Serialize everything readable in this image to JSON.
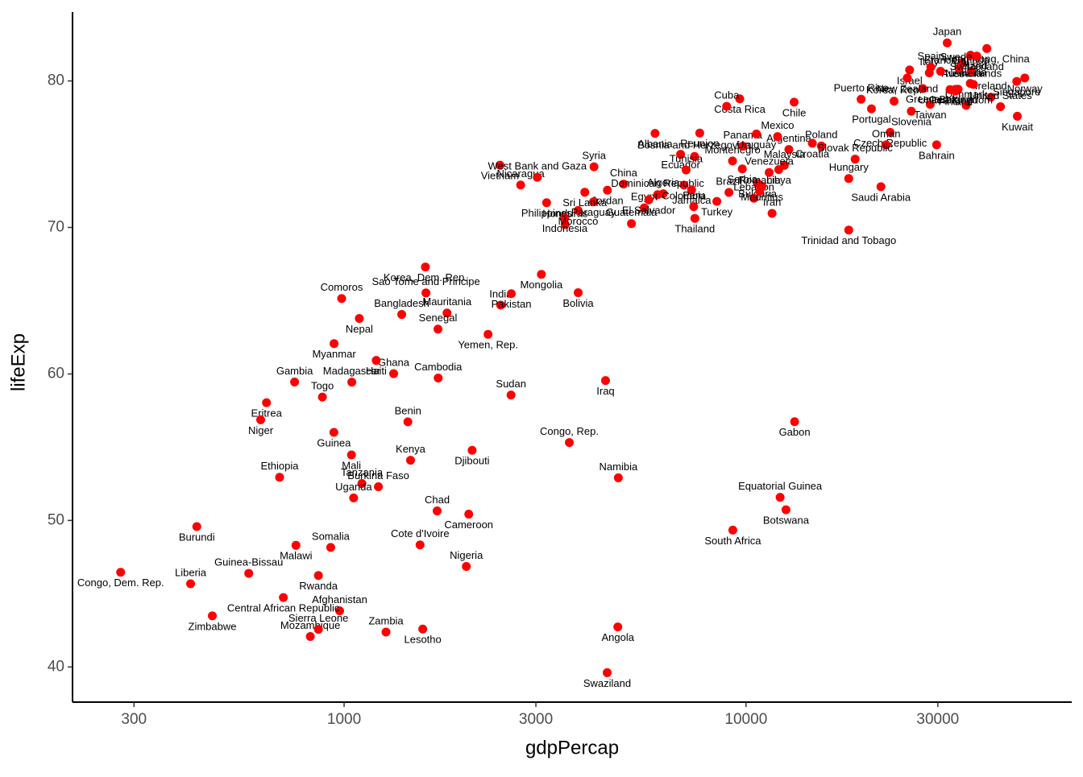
{
  "chart_data": {
    "type": "scatter",
    "x_label": "gdpPercap",
    "y_label": "lifeExp",
    "log_x": true,
    "grid": false,
    "color": "#ff0000",
    "xlim": [
      211,
      64600
    ],
    "ylim": [
      37.6,
      84.7
    ],
    "xticks": [
      300,
      1000,
      3000,
      10000,
      30000
    ],
    "yticks": [
      40,
      50,
      60,
      70,
      80
    ],
    "labels": [
      "Afghanistan",
      "Albania",
      "Algeria",
      "Angola",
      "Argentina",
      "Australia",
      "Austria",
      "Bahrain",
      "Bangladesh",
      "Belgium",
      "Benin",
      "Bolivia",
      "Bosnia and Herzegovina",
      "Botswana",
      "Brazil",
      "Bulgaria",
      "Burkina Faso",
      "Burundi",
      "Cambodia",
      "Cameroon",
      "Canada",
      "Central African Republic",
      "Chad",
      "Chile",
      "China",
      "Colombia",
      "Comoros",
      "Congo, Dem. Rep.",
      "Congo, Rep.",
      "Costa Rica",
      "Cote d'Ivoire",
      "Croatia",
      "Cuba",
      "Czech Republic",
      "Denmark",
      "Djibouti",
      "Dominican Republic",
      "Ecuador",
      "Egypt",
      "El Salvador",
      "Equatorial Guinea",
      "Eritrea",
      "Ethiopia",
      "Finland",
      "France",
      "Gabon",
      "Gambia",
      "Germany",
      "Ghana",
      "Greece",
      "Guatemala",
      "Guinea",
      "Guinea-Bissau",
      "Haiti",
      "Honduras",
      "Hong Kong, China",
      "Hungary",
      "Iceland",
      "India",
      "Indonesia",
      "Iran",
      "Iraq",
      "Ireland",
      "Israel",
      "Italy",
      "Jamaica",
      "Japan",
      "Jordan",
      "Kenya",
      "Korea, Dem. Rep.",
      "Korea, Rep.",
      "Kuwait",
      "Lebanon",
      "Lesotho",
      "Liberia",
      "Libya",
      "Madagascar",
      "Malawi",
      "Malaysia",
      "Mali",
      "Mauritania",
      "Mauritius",
      "Mexico",
      "Mongolia",
      "Montenegro",
      "Morocco",
      "Mozambique",
      "Myanmar",
      "Namibia",
      "Nepal",
      "Netherlands",
      "New Zealand",
      "Nicaragua",
      "Niger",
      "Nigeria",
      "Norway",
      "Oman",
      "Pakistan",
      "Panama",
      "Paraguay",
      "Peru",
      "Philippines",
      "Poland",
      "Portugal",
      "Puerto Rico",
      "Reunion",
      "Romania",
      "Rwanda",
      "Sao Tome and Principe",
      "Saudi Arabia",
      "Senegal",
      "Serbia",
      "Sierra Leone",
      "Singapore",
      "Slovak Republic",
      "Slovenia",
      "Somalia",
      "South Africa",
      "Spain",
      "Sri Lanka",
      "Sudan",
      "Swaziland",
      "Sweden",
      "Switzerland",
      "Syria",
      "Taiwan",
      "Tanzania",
      "Thailand",
      "Togo",
      "Trinidad and Tobago",
      "Tunisia",
      "Turkey",
      "Uganda",
      "United Kingdom",
      "United States",
      "Uruguay",
      "Venezuela",
      "Vietnam",
      "West Bank and Gaza",
      "Yemen, Rep.",
      "Zambia",
      "Zimbabwe"
    ],
    "x": [
      974.6,
      5937,
      6223,
      4797,
      12779,
      34435,
      36126,
      29796,
      1391,
      33693,
      1441,
      3822,
      7446,
      12570,
      9066,
      10681,
      1217,
      430,
      1714,
      2042,
      36319,
      706,
      1704,
      13172,
      4959,
      7007,
      986,
      278,
      3633,
      9645,
      1545,
      14619,
      8948,
      22833,
      35278,
      2082,
      6025,
      6873,
      5581,
      5728,
      12154,
      641,
      691,
      33207,
      30470,
      13206,
      753,
      32170,
      1328,
      27538,
      5186,
      943,
      579,
      1202,
      3548,
      39725,
      18009,
      36181,
      2452,
      3541,
      11606,
      4471,
      40676,
      25523,
      28570,
      7321,
      31656,
      4519,
      1463,
      1593,
      23348,
      47307,
      10461,
      1569,
      415,
      12057,
      1045,
      759,
      12452,
      1043,
      1803,
      10957,
      11978,
      3096,
      9254,
      3820,
      824,
      944,
      4811,
      1091,
      36798,
      25185,
      2749,
      620,
      2014,
      49357,
      22316,
      2606,
      9809,
      4173,
      7409,
      3190,
      15390,
      20510,
      19329,
      7670,
      10808,
      863,
      1598,
      21655,
      1712,
      9787,
      863,
      47143,
      18678,
      25768,
      926,
      9270,
      28821,
      3970,
      2602,
      4513,
      33860,
      37506,
      4185,
      28718,
      1107,
      7458,
      883,
      18009,
      7093,
      8458,
      1056,
      33203,
      42952,
      10611,
      11416,
      2442,
      3025,
      2281,
      1271,
      470
    ],
    "y": [
      43.83,
      76.42,
      72.3,
      42.73,
      75.32,
      81.24,
      79.83,
      75.64,
      64.06,
      79.44,
      56.73,
      65.55,
      74.85,
      50.73,
      72.39,
      73.01,
      52.3,
      49.58,
      59.72,
      50.43,
      80.65,
      44.74,
      50.65,
      78.55,
      72.96,
      72.89,
      65.15,
      46.46,
      55.32,
      78.78,
      48.33,
      75.75,
      78.27,
      76.49,
      78.33,
      54.79,
      72.24,
      74.99,
      71.34,
      71.88,
      51.58,
      58.04,
      52.95,
      79.31,
      80.66,
      56.74,
      59.45,
      79.41,
      60.02,
      79.48,
      70.26,
      56.01,
      46.39,
      60.92,
      70.2,
      82.21,
      73.34,
      81.76,
      64.7,
      70.65,
      70.96,
      59.55,
      78.89,
      80.75,
      80.55,
      72.57,
      82.6,
      72.54,
      54.11,
      67.3,
      78.62,
      77.59,
      71.99,
      42.59,
      45.68,
      73.95,
      59.44,
      48.3,
      74.24,
      54.47,
      64.16,
      72.8,
      76.2,
      66.8,
      74.54,
      71.16,
      42.08,
      62.07,
      52.91,
      63.79,
      79.76,
      80.2,
      72.9,
      56.87,
      46.86,
      80.2,
      75.64,
      65.48,
      75.54,
      71.75,
      71.42,
      71.69,
      75.56,
      78.1,
      78.75,
      76.44,
      72.48,
      46.24,
      65.53,
      72.78,
      63.06,
      74.0,
      42.57,
      79.97,
      74.66,
      77.93,
      48.16,
      49.34,
      80.94,
      72.4,
      58.56,
      39.61,
      80.88,
      81.7,
      74.14,
      78.4,
      52.52,
      70.62,
      58.42,
      69.82,
      73.92,
      71.78,
      51.54,
      79.43,
      78.24,
      76.38,
      73.75,
      74.25,
      73.42,
      62.7,
      42.38,
      43.49
    ]
  }
}
